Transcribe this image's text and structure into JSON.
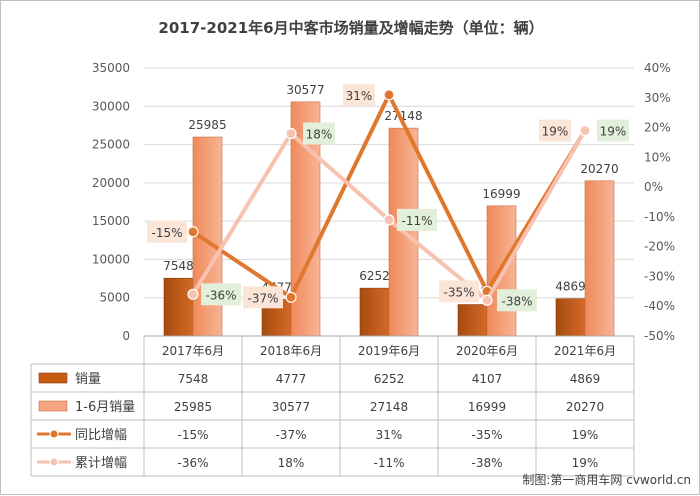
{
  "chart_data": {
    "type": "bar",
    "title": "2017-2021年6月中客市场销量及增幅走势（单位：辆）",
    "categories": [
      "2017年6月",
      "2018年6月",
      "2019年6月",
      "2020年6月",
      "2021年6月"
    ],
    "series": [
      {
        "name": "销量",
        "kind": "bar",
        "axis": "left",
        "color": "#c55a11",
        "values": [
          7548,
          4777,
          6252,
          4107,
          4869
        ],
        "labels": [
          "7548",
          "4777",
          "6252",
          "4107",
          "4869"
        ]
      },
      {
        "name": "1-6月销量",
        "kind": "bar",
        "axis": "left",
        "color": "#f4a582",
        "values": [
          25985,
          30577,
          27148,
          16999,
          20270
        ],
        "labels": [
          "25985",
          "30577",
          "27148",
          "16999",
          "20270"
        ]
      },
      {
        "name": "同比增幅",
        "kind": "line",
        "axis": "right",
        "color": "#e0772e",
        "values": [
          -15,
          -37,
          31,
          -35,
          19
        ],
        "labels": [
          "-15%",
          "-37%",
          "31%",
          "-35%",
          "19%"
        ]
      },
      {
        "name": "累计增幅",
        "kind": "line",
        "axis": "right",
        "color": "#f7c2b0",
        "values": [
          -36,
          18,
          -11,
          -38,
          19
        ],
        "labels": [
          "-36%",
          "18%",
          "-11%",
          "-38%",
          "19%"
        ]
      }
    ],
    "y_left": {
      "min": 0,
      "max": 35000,
      "step": 5000,
      "ticks": [
        "0",
        "5000",
        "10000",
        "15000",
        "20000",
        "25000",
        "30000",
        "35000"
      ]
    },
    "y_right": {
      "min": -50,
      "max": 40,
      "step": 10,
      "ticks": [
        "-50%",
        "-40%",
        "-30%",
        "-20%",
        "-10%",
        "0%",
        "10%",
        "20%",
        "30%",
        "40%"
      ]
    },
    "grid": true,
    "data_table": true
  },
  "credit": "制图:第一商用车网 cvworld.cn"
}
